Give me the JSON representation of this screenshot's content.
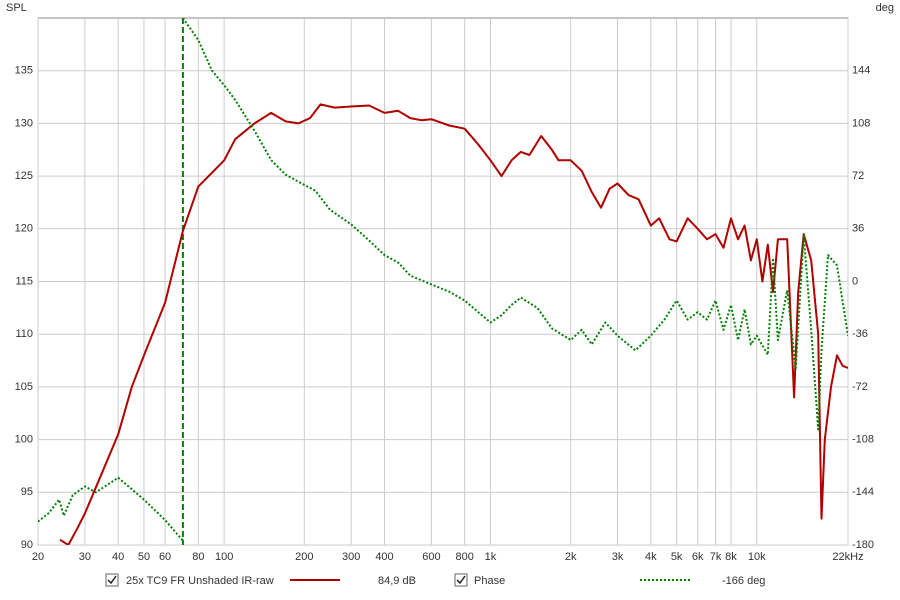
{
  "chart_data": {
    "type": "line",
    "y_label": "SPL",
    "y2_label": "deg",
    "log_x": true,
    "grid": true,
    "xlim": [
      20,
      22000
    ],
    "xticks": [
      20,
      30,
      40,
      50,
      60,
      80,
      100,
      200,
      300,
      400,
      600,
      800,
      {
        "value": 1000,
        "label": "1k"
      },
      {
        "value": 2000,
        "label": "2k"
      },
      {
        "value": 3000,
        "label": "3k"
      },
      {
        "value": 4000,
        "label": "4k"
      },
      {
        "value": 5000,
        "label": "5k"
      },
      {
        "value": 6000,
        "label": "6k"
      },
      {
        "value": 7000,
        "label": "7k"
      },
      {
        "value": 8000,
        "label": "8k"
      },
      {
        "value": 10000,
        "label": "10k"
      },
      {
        "value": 22000,
        "label": "22kHz"
      }
    ],
    "ylim": [
      90,
      140
    ],
    "yticks": [
      90,
      95,
      100,
      105,
      110,
      115,
      120,
      125,
      130,
      135
    ],
    "y2lim": [
      -180,
      180
    ],
    "y2ticks": [
      -180,
      -144,
      -108,
      -72,
      -36,
      0,
      36,
      72,
      108,
      144
    ],
    "marker": {
      "x": 70,
      "color": "#008000"
    },
    "series": [
      {
        "name": "25x TC9 FR Unshaded IR-raw",
        "legend_value": "84,9 dB",
        "color": "#b00000",
        "style": "solid",
        "x": [
          24.2,
          26,
          28,
          30,
          35,
          40,
          45,
          50,
          60,
          70,
          80,
          100,
          110,
          130,
          150,
          170,
          190,
          210,
          230,
          260,
          300,
          350,
          400,
          450,
          500,
          550,
          600,
          700,
          800,
          900,
          1000,
          1100,
          1200,
          1300,
          1400,
          1550,
          1700,
          1800,
          2000,
          2200,
          2400,
          2600,
          2800,
          3000,
          3300,
          3600,
          4000,
          4300,
          4700,
          5000,
          5500,
          6000,
          6500,
          7000,
          7500,
          8000,
          8500,
          9000,
          9500,
          10000,
          10500,
          11000,
          11500,
          12000,
          13000,
          13800,
          14300,
          15000,
          16000,
          17000,
          17500,
          18000,
          19000,
          20000,
          21000,
          22000
        ],
        "values": [
          90.5,
          90,
          91.5,
          93,
          97,
          100.5,
          105,
          108,
          113,
          119.8,
          124,
          126.5,
          128.5,
          130,
          131,
          130.2,
          130,
          130.5,
          131.8,
          131.5,
          131.6,
          131.7,
          131,
          131.2,
          130.5,
          130.3,
          130.4,
          129.8,
          129.5,
          128,
          126.5,
          125,
          126.5,
          127.3,
          127,
          128.8,
          127.5,
          126.5,
          126.5,
          125.5,
          123.5,
          122,
          123.8,
          124.3,
          123.2,
          122.8,
          120.3,
          121,
          119,
          118.8,
          121,
          120,
          119,
          119.5,
          118.2,
          121,
          119,
          120.3,
          117,
          119,
          115,
          118.5,
          114,
          119,
          119,
          104,
          114,
          119.5,
          117,
          110,
          92.5,
          100,
          105,
          108,
          107,
          106.8
        ]
      },
      {
        "name": "Phase",
        "legend_value": "-166 deg",
        "color": "#008000",
        "style": "dotted",
        "axis": "y2",
        "x": [
          20,
          22,
          24,
          25,
          27,
          30,
          33,
          40,
          50,
          60,
          70,
          70,
          70,
          80,
          90,
          100,
          110,
          130,
          150,
          170,
          200,
          220,
          250,
          300,
          350,
          400,
          450,
          500,
          600,
          700,
          800,
          900,
          1000,
          1100,
          1200,
          1300,
          1500,
          1700,
          2000,
          2200,
          2400,
          2700,
          3000,
          3500,
          4000,
          4500,
          5000,
          5500,
          6000,
          6500,
          7000,
          7500,
          8000,
          8500,
          9000,
          9500,
          10000,
          11000,
          11500,
          12000,
          13000,
          14000,
          15000,
          16000,
          17000,
          17500,
          18500,
          20000,
          22000
        ],
        "values": [
          -164,
          -158,
          -149,
          -160,
          -146,
          -140,
          -144,
          -134,
          -149,
          -163,
          -177,
          null,
          180,
          165,
          144,
          134,
          124,
          103,
          83,
          73,
          66,
          62,
          49,
          39,
          28,
          18,
          13,
          4,
          -2,
          -7,
          -13,
          -21,
          -28,
          -23,
          -16,
          -11,
          -18,
          -32,
          -40,
          -33,
          -43,
          -28,
          -37,
          -47,
          -37,
          -26,
          -13,
          -26,
          -21,
          -26,
          -13,
          -33,
          -16,
          -40,
          -19,
          -43,
          -37,
          -50,
          16,
          -40,
          -6,
          -60,
          32,
          -33,
          -101,
          -47,
          18,
          11,
          -37
        ]
      }
    ]
  }
}
